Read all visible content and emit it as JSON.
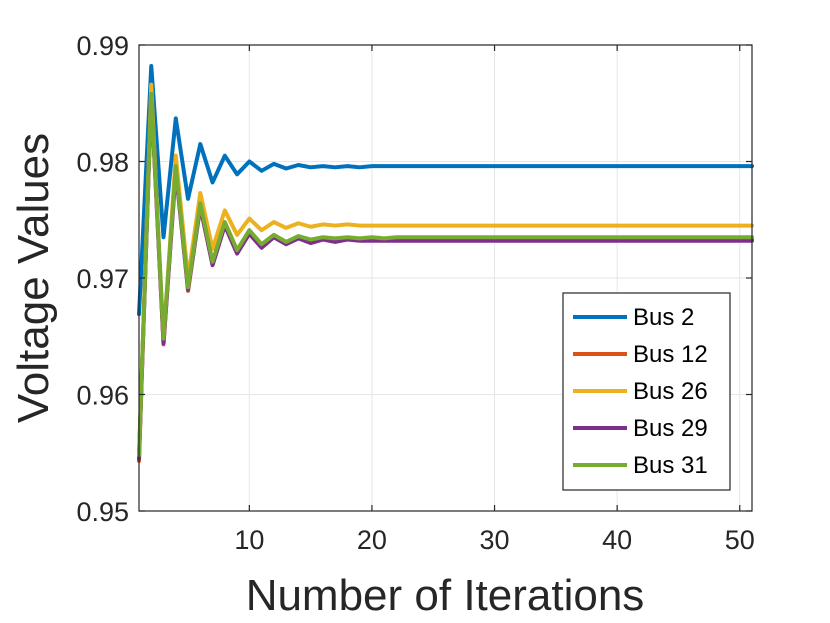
{
  "chart_data": {
    "type": "line",
    "title": "",
    "xlabel": "Number of Iterations",
    "ylabel": "Voltage Values",
    "xlim": [
      1,
      51
    ],
    "ylim": [
      0.95,
      0.99
    ],
    "xticks": [
      10,
      20,
      30,
      40,
      50
    ],
    "xtick_labels": [
      "10",
      "20",
      "30",
      "40",
      "50"
    ],
    "yticks": [
      0.95,
      0.96,
      0.97,
      0.98,
      0.99
    ],
    "ytick_labels": [
      "0.95",
      "0.96",
      "0.97",
      "0.98",
      "0.99"
    ],
    "grid": true,
    "legend_position": "lower-right",
    "x": [
      1,
      2,
      3,
      4,
      5,
      6,
      7,
      8,
      9,
      10,
      11,
      12,
      13,
      14,
      15,
      16,
      17,
      18,
      19,
      20,
      21,
      22,
      23,
      24,
      25,
      26,
      27,
      28,
      29,
      30,
      31,
      32,
      33,
      34,
      35,
      36,
      37,
      38,
      39,
      40,
      41,
      42,
      43,
      44,
      45,
      46,
      47,
      48,
      49,
      50,
      51
    ],
    "series": [
      {
        "name": "Bus 2",
        "color": "#0072BD",
        "values": [
          0.9669,
          0.9882,
          0.9735,
          0.9837,
          0.9768,
          0.9815,
          0.9782,
          0.9805,
          0.9789,
          0.98,
          0.9792,
          0.9798,
          0.9794,
          0.9797,
          0.9795,
          0.9796,
          0.9795,
          0.9796,
          0.9795,
          0.9796,
          0.9796,
          0.9796,
          0.9796,
          0.9796,
          0.9796,
          0.9796,
          0.9796,
          0.9796,
          0.9796,
          0.9796,
          0.9796,
          0.9796,
          0.9796,
          0.9796,
          0.9796,
          0.9796,
          0.9796,
          0.9796,
          0.9796,
          0.9796,
          0.9796,
          0.9796,
          0.9796,
          0.9796,
          0.9796,
          0.9796,
          0.9796,
          0.9796,
          0.9796,
          0.9796,
          0.9796
        ]
      },
      {
        "name": "Bus 12",
        "color": "#D95319",
        "values": [
          0.9543,
          0.986,
          0.9643,
          0.9795,
          0.9689,
          0.9762,
          0.9712,
          0.9746,
          0.9722,
          0.9739,
          0.9727,
          0.9736,
          0.973,
          0.9735,
          0.9731,
          0.9734,
          0.9732,
          0.9734,
          0.9733,
          0.9733,
          0.9733,
          0.9733,
          0.9733,
          0.9733,
          0.9733,
          0.9733,
          0.9733,
          0.9733,
          0.9733,
          0.9733,
          0.9733,
          0.9733,
          0.9733,
          0.9733,
          0.9733,
          0.9733,
          0.9733,
          0.9733,
          0.9733,
          0.9733,
          0.9733,
          0.9733,
          0.9733,
          0.9733,
          0.9733,
          0.9733,
          0.9733,
          0.9733,
          0.9733,
          0.9733,
          0.9733
        ]
      },
      {
        "name": "Bus 26",
        "color": "#EDB120",
        "values": [
          0.9546,
          0.9866,
          0.9645,
          0.9805,
          0.97,
          0.9773,
          0.9725,
          0.9758,
          0.9737,
          0.9751,
          0.9741,
          0.9748,
          0.9743,
          0.9747,
          0.9744,
          0.9746,
          0.9745,
          0.9746,
          0.9745,
          0.9745,
          0.9745,
          0.9745,
          0.9745,
          0.9745,
          0.9745,
          0.9745,
          0.9745,
          0.9745,
          0.9745,
          0.9745,
          0.9745,
          0.9745,
          0.9745,
          0.9745,
          0.9745,
          0.9745,
          0.9745,
          0.9745,
          0.9745,
          0.9745,
          0.9745,
          0.9745,
          0.9745,
          0.9745,
          0.9745,
          0.9745,
          0.9745,
          0.9745,
          0.9745,
          0.9745,
          0.9745
        ]
      },
      {
        "name": "Bus 29",
        "color": "#7E2F8E",
        "values": [
          0.9545,
          0.9856,
          0.9644,
          0.9792,
          0.969,
          0.9761,
          0.9711,
          0.9745,
          0.9721,
          0.9738,
          0.9726,
          0.9735,
          0.9729,
          0.9734,
          0.973,
          0.9733,
          0.9731,
          0.9733,
          0.9732,
          0.9732,
          0.9732,
          0.9732,
          0.9732,
          0.9732,
          0.9732,
          0.9732,
          0.9732,
          0.9732,
          0.9732,
          0.9732,
          0.9732,
          0.9732,
          0.9732,
          0.9732,
          0.9732,
          0.9732,
          0.9732,
          0.9732,
          0.9732,
          0.9732,
          0.9732,
          0.9732,
          0.9732,
          0.9732,
          0.9732,
          0.9732,
          0.9732,
          0.9732,
          0.9732,
          0.9732,
          0.9732
        ]
      },
      {
        "name": "Bus 31",
        "color": "#77AC30",
        "values": [
          0.9548,
          0.9858,
          0.9648,
          0.9796,
          0.9692,
          0.9764,
          0.9714,
          0.9748,
          0.9724,
          0.9741,
          0.9729,
          0.9737,
          0.9731,
          0.9736,
          0.9733,
          0.9735,
          0.9734,
          0.9735,
          0.9734,
          0.9735,
          0.9734,
          0.9735,
          0.9735,
          0.9735,
          0.9735,
          0.9735,
          0.9735,
          0.9735,
          0.9735,
          0.9735,
          0.9735,
          0.9735,
          0.9735,
          0.9735,
          0.9735,
          0.9735,
          0.9735,
          0.9735,
          0.9735,
          0.9735,
          0.9735,
          0.9735,
          0.9735,
          0.9735,
          0.9735,
          0.9735,
          0.9735,
          0.9735,
          0.9735,
          0.9735,
          0.9735
        ]
      }
    ]
  }
}
